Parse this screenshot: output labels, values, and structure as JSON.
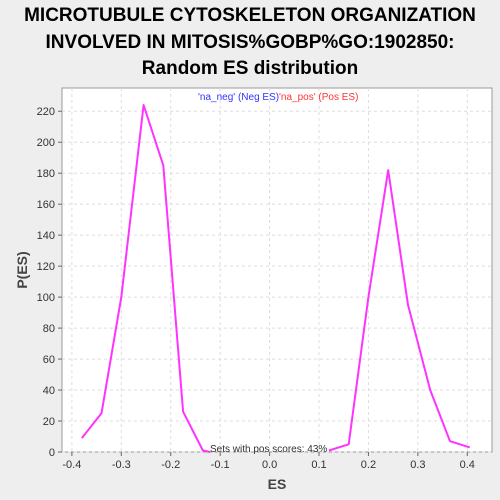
{
  "title_line1": "MICROTUBULE CYTOSKELETON ORGANIZATION",
  "title_line2": "INVOLVED IN MITOSIS%GOBP%GO:1902850:",
  "title_line3": "Random ES distribution",
  "chart_data": {
    "type": "line",
    "xlabel": "ES",
    "ylabel": "P(ES)",
    "xlim": [
      -0.42,
      0.45
    ],
    "ylim": [
      0,
      235
    ],
    "grid": true,
    "x_ticks": [
      -0.4,
      -0.3,
      -0.2,
      -0.1,
      0.0,
      0.1,
      0.2,
      0.3,
      0.4
    ],
    "x_tick_labels": [
      "-0.4",
      "-0.3",
      "-0.2",
      "-0.1",
      "0.0",
      "0.1",
      "0.2",
      "0.3",
      "0.4"
    ],
    "y_ticks": [
      0,
      20,
      40,
      60,
      80,
      100,
      120,
      140,
      160,
      180,
      200,
      220
    ],
    "y_tick_labels": [
      "0",
      "20",
      "40",
      "60",
      "80",
      "100",
      "120",
      "140",
      "160",
      "180",
      "200",
      "220"
    ],
    "series": [
      {
        "name": "'na_neg' (Neg ES)",
        "color": "#ff33ff",
        "x": [
          -0.38,
          -0.34,
          -0.3,
          -0.255,
          -0.215,
          -0.175,
          -0.135,
          -0.12
        ],
        "y": [
          9,
          25,
          100,
          224,
          185,
          26,
          1,
          0
        ]
      },
      {
        "name": "'na_pos' (Pos ES)",
        "color": "#ff33ff",
        "x": [
          0.12,
          0.16,
          0.2,
          0.24,
          0.28,
          0.325,
          0.365,
          0.405
        ],
        "y": [
          1,
          5,
          100,
          182,
          95,
          40,
          7,
          3
        ]
      }
    ],
    "legend": [
      {
        "text": "'na_neg' (Neg ES)",
        "color": "#3333ff"
      },
      {
        "text": "'na_pos' (Pos ES)",
        "color": "#ff3333"
      }
    ],
    "legend_placement": "top-center",
    "annotation": "Sets with pos scores: 43%"
  }
}
